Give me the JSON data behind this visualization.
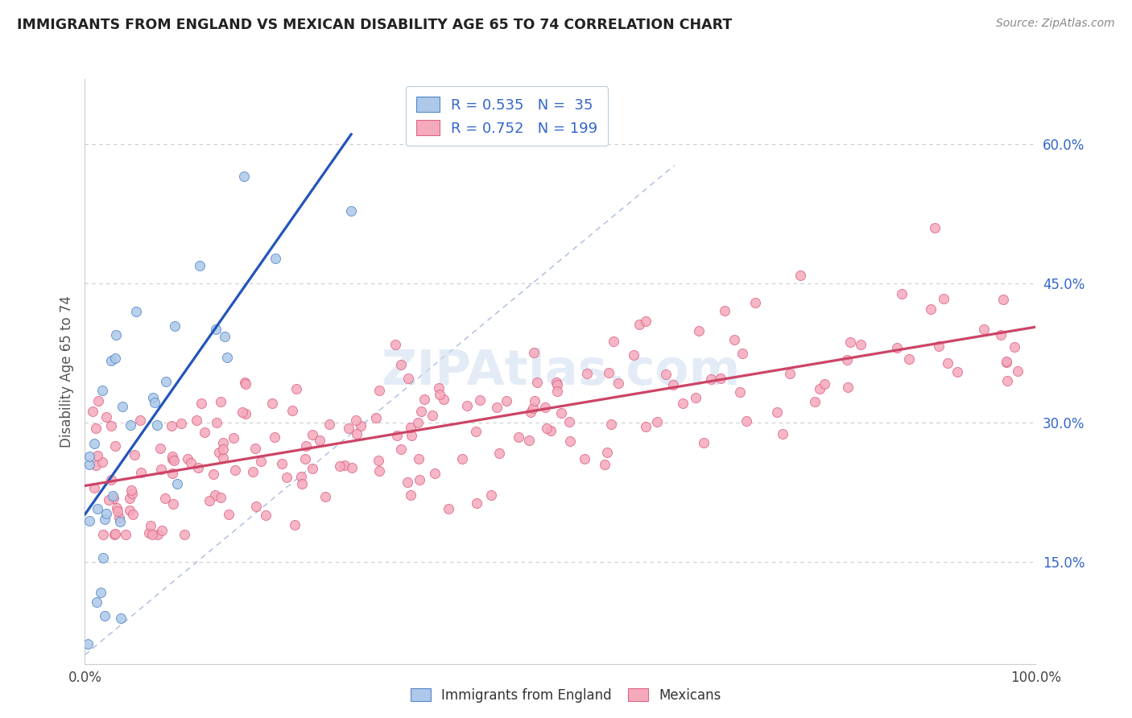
{
  "title": "IMMIGRANTS FROM ENGLAND VS MEXICAN DISABILITY AGE 65 TO 74 CORRELATION CHART",
  "source": "Source: ZipAtlas.com",
  "ylabel": "Disability Age 65 to 74",
  "xmin": 0.0,
  "xmax": 1.0,
  "ymin": 0.04,
  "ymax": 0.67,
  "yticks": [
    0.15,
    0.3,
    0.45,
    0.6
  ],
  "ytick_labels": [
    "15.0%",
    "30.0%",
    "45.0%",
    "60.0%"
  ],
  "england_color": "#adc8e8",
  "england_edge_color": "#5588cc",
  "mexico_color": "#f5aabb",
  "mexico_edge_color": "#dd6688",
  "england_line_color": "#2255bb",
  "mexico_line_color": "#cc4466",
  "ref_line_color": "#aabbdd",
  "legend_england_R": "0.535",
  "legend_england_N": "35",
  "legend_mexico_R": "0.752",
  "legend_mexico_N": "199",
  "title_color": "#222222",
  "source_color": "#888888",
  "axis_label_color": "#555555",
  "tick_label_color_right": "#3366cc",
  "grid_color": "#cccccc",
  "background_color": "#ffffff",
  "watermark": "ZIPAtlas.com",
  "watermark_color": "#ccddf0"
}
